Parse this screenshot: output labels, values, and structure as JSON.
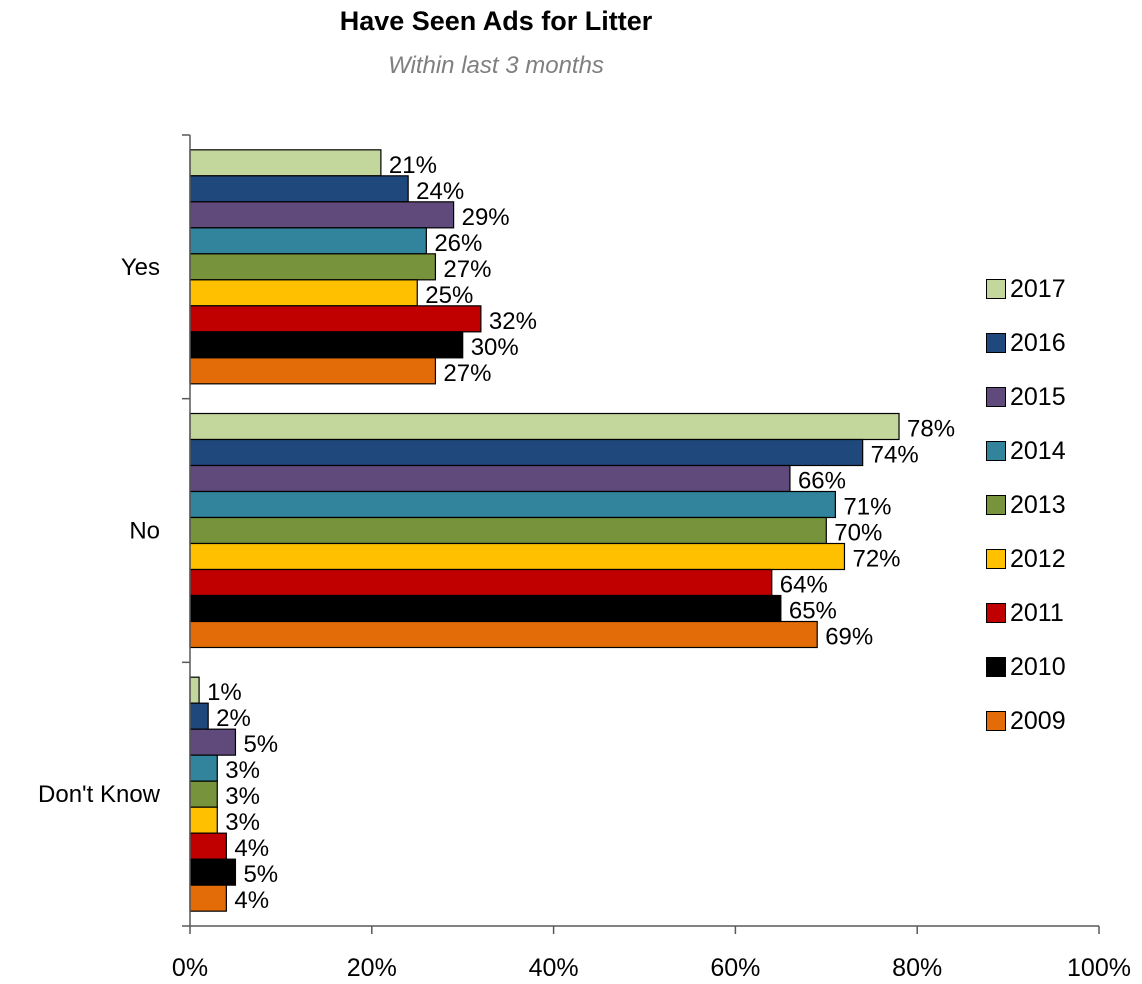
{
  "chart_data": {
    "type": "bar",
    "orientation": "horizontal",
    "title": "Have Seen Ads for Litter",
    "subtitle": "Within last 3 months",
    "categories": [
      "Yes",
      "No",
      "Don't Know"
    ],
    "xlim": [
      0,
      100
    ],
    "x_ticks": [
      "0%",
      "20%",
      "40%",
      "60%",
      "80%",
      "100%"
    ],
    "x_tick_values": [
      0,
      20,
      40,
      60,
      80,
      100
    ],
    "grid": false,
    "legend_placement": "right",
    "series": [
      {
        "name": "2017",
        "color": "#c3d69b",
        "values": [
          21,
          78,
          1
        ]
      },
      {
        "name": "2016",
        "color": "#1f497d",
        "values": [
          24,
          74,
          2
        ]
      },
      {
        "name": "2015",
        "color": "#604a7b",
        "values": [
          29,
          66,
          5
        ]
      },
      {
        "name": "2014",
        "color": "#31849b",
        "values": [
          26,
          71,
          3
        ]
      },
      {
        "name": "2013",
        "color": "#77933c",
        "values": [
          27,
          70,
          3
        ]
      },
      {
        "name": "2012",
        "color": "#ffc000",
        "values": [
          25,
          72,
          3
        ]
      },
      {
        "name": "2011",
        "color": "#c00000",
        "values": [
          32,
          64,
          4
        ]
      },
      {
        "name": "2010",
        "color": "#000000",
        "values": [
          30,
          65,
          5
        ]
      },
      {
        "name": "2009",
        "color": "#e36c09",
        "values": [
          27,
          69,
          4
        ]
      }
    ]
  }
}
